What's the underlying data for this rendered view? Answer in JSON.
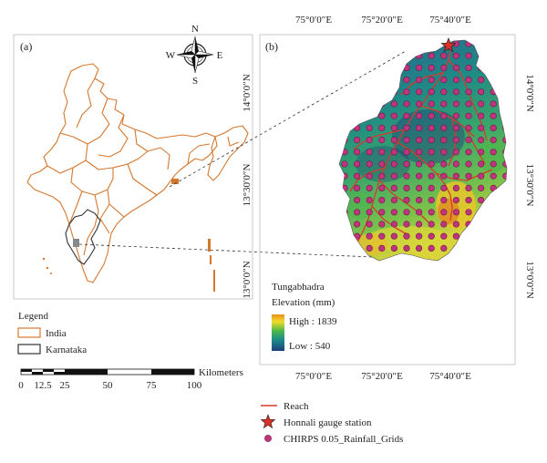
{
  "panel_a": {
    "label": "(a)",
    "compass": {
      "n": "N",
      "s": "S",
      "e": "E",
      "w": "W"
    },
    "legend": {
      "title": "Legend",
      "items": [
        {
          "label": "India",
          "color": "#d4782e"
        },
        {
          "label": "Karnataka",
          "color": "#333333"
        }
      ]
    },
    "scalebar": {
      "unit": "Kilometers",
      "ticks": [
        "0",
        "12.5",
        "25",
        "50",
        "75",
        "100"
      ]
    }
  },
  "panel_b": {
    "label": "(b)",
    "top_lon": [
      "75°0′0″E",
      "75°20′0″E",
      "75°40′0″E"
    ],
    "bottom_lon": [
      "75°0′0″E",
      "75°20′0″E",
      "75°40′0″E"
    ],
    "left_lat": [
      "14°0′0″N",
      "13°30′0″N",
      "13°0′0″N"
    ],
    "right_lat": [
      "14°0′0″N",
      "13°30′0″N",
      "13°0′0″N"
    ],
    "elevation_legend": {
      "title1": "Tungabhadra",
      "title2": "Elevation (mm)",
      "high": "High : 1839",
      "low": "Low : 540"
    }
  },
  "bottom_legend": {
    "reach": {
      "label": "Reach",
      "color": "#d83a2a"
    },
    "gauge": {
      "label": "Honnali gauge station",
      "color": "#d8322a"
    },
    "grid": {
      "label": "CHIRPS 0.05_Rainfall_Grids",
      "color": "#c0347e"
    }
  }
}
